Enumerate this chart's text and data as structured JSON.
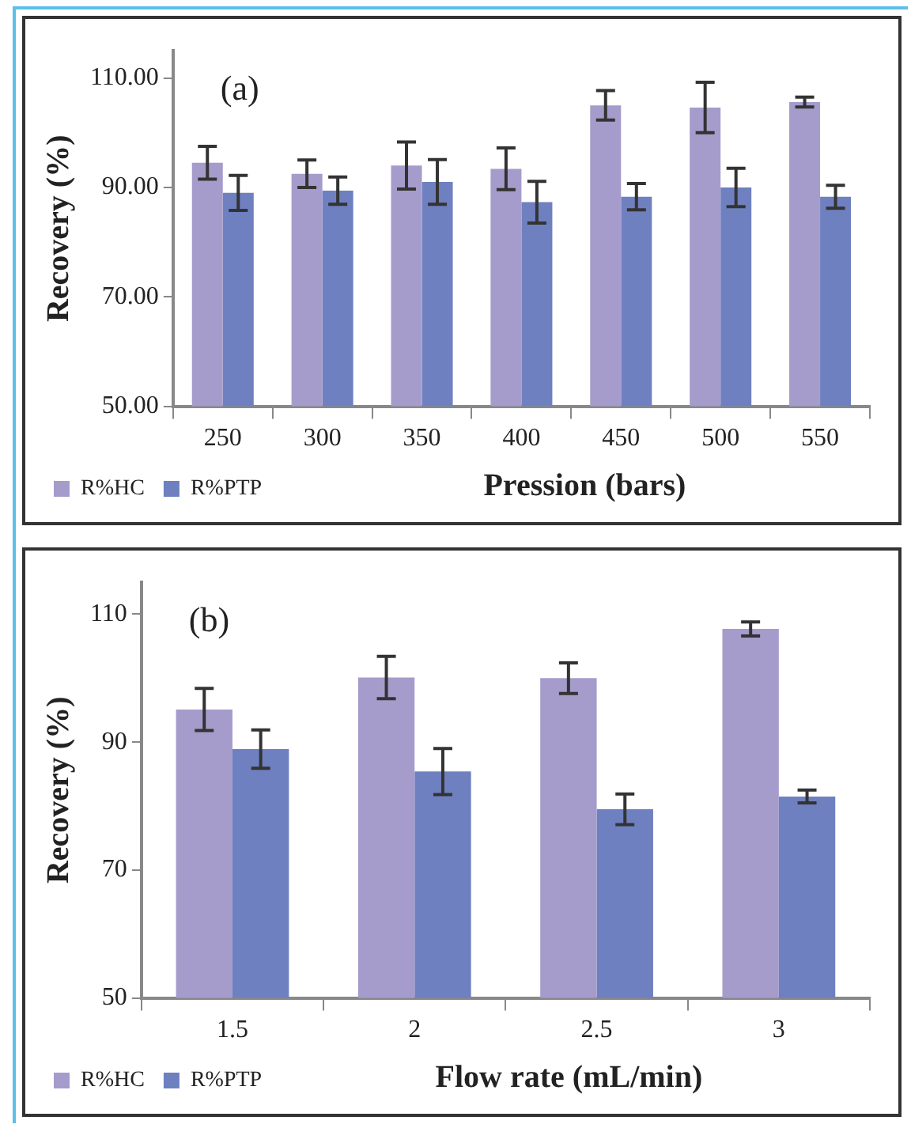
{
  "chart_data": [
    {
      "type": "bar",
      "title": "(a)",
      "xlabel": "Pression (bars)",
      "ylabel": "Recovery (%)",
      "categories": [
        "250",
        "300",
        "350",
        "400",
        "450",
        "500",
        "550"
      ],
      "series": [
        {
          "name": "R%HC",
          "color": "#a59ccc",
          "values": [
            94.5,
            92.5,
            94,
            93.4,
            105,
            104.6,
            105.6
          ],
          "errors": [
            3,
            2.5,
            4.3,
            3.8,
            2.7,
            4.6,
            0.9
          ]
        },
        {
          "name": "R%PTP",
          "color": "#6f80c0",
          "values": [
            89,
            89.4,
            91,
            87.3,
            88.3,
            90,
            88.3
          ],
          "errors": [
            3.2,
            2.5,
            4.1,
            3.8,
            2.4,
            3.5,
            2.1
          ]
        }
      ],
      "ylim": [
        50,
        115
      ],
      "yticks": [
        {
          "value": 50,
          "label": "50.00"
        },
        {
          "value": 70,
          "label": "70.00"
        },
        {
          "value": 90,
          "label": "90.00"
        },
        {
          "value": 110,
          "label": "110.00"
        }
      ],
      "legend": "bottom left"
    },
    {
      "type": "bar",
      "title": "(b)",
      "xlabel": "Flow rate (mL/min)",
      "ylabel": "Recovery (%)",
      "categories": [
        "1.5",
        "2",
        "2.5",
        "3"
      ],
      "series": [
        {
          "name": "R%HC",
          "color": "#a59ccc",
          "values": [
            95.1,
            100.1,
            100,
            107.7
          ],
          "errors": [
            3.3,
            3.3,
            2.4,
            1.1
          ]
        },
        {
          "name": "R%PTP",
          "color": "#6f80c0",
          "values": [
            88.9,
            85.4,
            79.5,
            81.5
          ],
          "errors": [
            3,
            3.6,
            2.4,
            1
          ]
        }
      ],
      "ylim": [
        50,
        115
      ],
      "yticks": [
        50,
        70,
        90,
        110
      ],
      "legend": "bottom left"
    }
  ]
}
